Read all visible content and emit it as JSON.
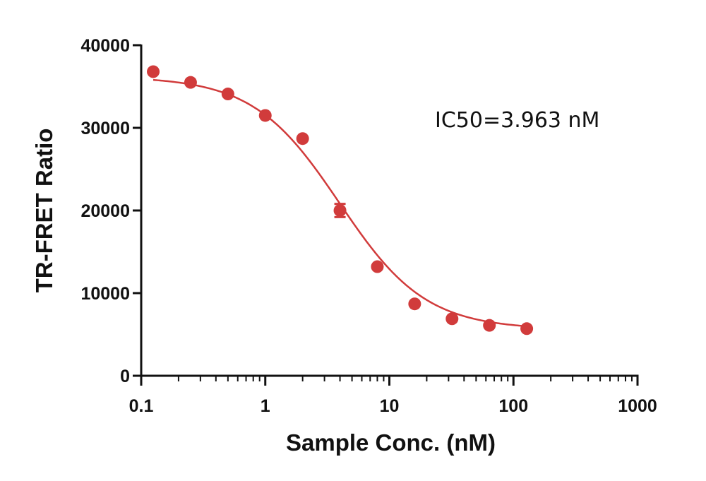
{
  "chart_data": {
    "type": "scatter",
    "xlabel": "Sample Conc. (nM)",
    "ylabel": "TR-FRET Ratio",
    "x_scale": "log",
    "xlim": [
      0.1,
      1000
    ],
    "ylim": [
      0,
      40000
    ],
    "x_ticks": [
      0.1,
      1,
      10,
      100,
      1000
    ],
    "x_tick_labels": [
      "0.1",
      "1",
      "10",
      "100",
      "1000"
    ],
    "y_ticks": [
      0,
      10000,
      20000,
      30000,
      40000
    ],
    "y_tick_labels": [
      "0",
      "10000",
      "20000",
      "30000",
      "40000"
    ],
    "grid": false,
    "color": "#d13b3b",
    "annotation": "IC50=3.963 nM",
    "series": [
      {
        "x": [
          0.125,
          0.25,
          0.5,
          1.0,
          2.0,
          4.0,
          8.0,
          16.0,
          32.0,
          64.0,
          128.0
        ],
        "y": [
          36800,
          35500,
          34100,
          31500,
          28700,
          20000,
          13200,
          8700,
          6900,
          6100,
          5700
        ],
        "error": [
          0,
          0,
          0,
          0,
          0,
          800,
          0,
          0,
          0,
          0,
          0
        ]
      }
    ],
    "fit": {
      "model": "4PL",
      "top": 36200,
      "bottom": 5600,
      "ic50": 3.963,
      "hill": 1.25,
      "x_range": [
        0.125,
        128
      ]
    }
  }
}
